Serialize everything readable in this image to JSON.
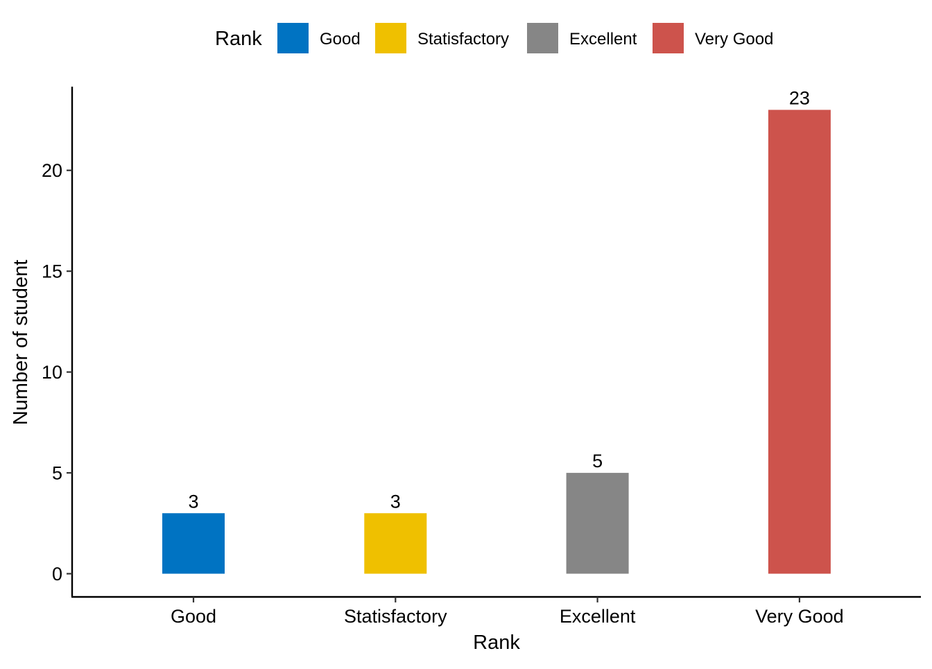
{
  "chart_data": {
    "type": "bar",
    "categories": [
      "Good",
      "Statisfactory",
      "Excellent",
      "Very Good"
    ],
    "values": [
      3,
      3,
      5,
      23
    ],
    "data_labels": [
      "3",
      "3",
      "5",
      "23"
    ],
    "colors": [
      "#0073C2",
      "#EFC000",
      "#868686",
      "#CD534C"
    ],
    "xlabel": "Rank",
    "ylabel": "Number of student",
    "ylim": [
      -1.15,
      24.15
    ],
    "yticks": [
      0,
      5,
      10,
      15,
      20
    ],
    "ytick_labels": [
      "0",
      "5",
      "10",
      "15",
      "20"
    ],
    "grid": false,
    "legend": {
      "title": "Rank",
      "position": "top",
      "entries": [
        "Good",
        "Statisfactory",
        "Excellent",
        "Very Good"
      ]
    }
  }
}
